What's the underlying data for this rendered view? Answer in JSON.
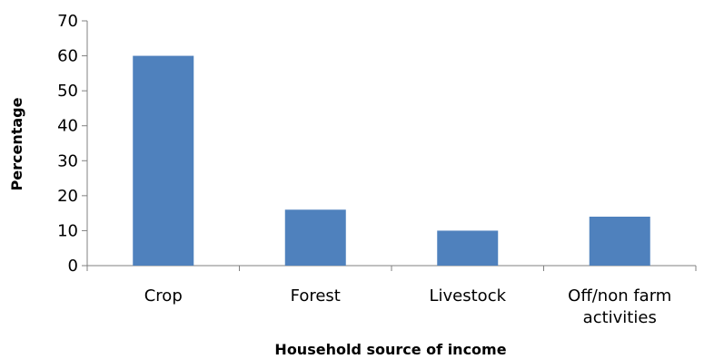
{
  "chart_data": {
    "type": "bar",
    "categories": [
      "Crop",
      "Forest",
      "Livestock",
      "Off/non farm activities"
    ],
    "category_lines": [
      [
        "Crop"
      ],
      [
        "Forest"
      ],
      [
        "Livestock"
      ],
      [
        "Off/non farm",
        "activities"
      ]
    ],
    "values": [
      60,
      16,
      10,
      14
    ],
    "title": "",
    "xlabel": "Household source of income",
    "ylabel": "Percentage",
    "ylim": [
      0,
      70
    ],
    "yticks": [
      0,
      10,
      20,
      30,
      40,
      50,
      60,
      70
    ],
    "grid": false,
    "legend": "none",
    "bar_color": "#4f81bd"
  }
}
